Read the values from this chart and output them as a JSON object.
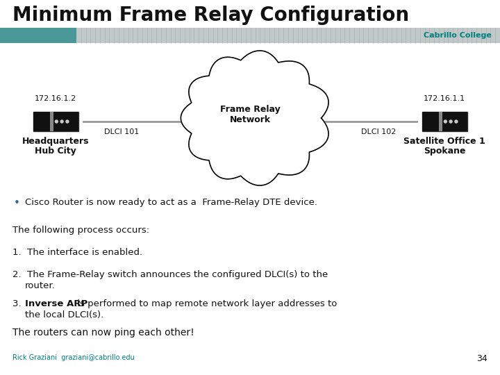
{
  "title": "Minimum Frame Relay Configuration",
  "title_fontsize": 20,
  "bg_color": "#ffffff",
  "header_teal_color": "#4a9898",
  "header_grey_color": "#c0c8c8",
  "cabrillo_text": "Cabrillo College",
  "cabrillo_color": "#008080",
  "cloud_label": "Frame Relay\nNetwork",
  "left_ip": "172.16.1.2",
  "right_ip": "172.16.1.1",
  "left_label1": "Headquarters",
  "left_label2": "Hub City",
  "right_label1": "Satellite Office 1",
  "right_label2": "Spokane",
  "left_dlci": "DLCI 101",
  "right_dlci": "DLCI 102",
  "bullet_text": "Cisco Router is now ready to act as a  Frame-Relay DTE device.",
  "footer_text": "The routers can now ping each other!",
  "footnote": "Rick Graziani  graziani@cabrillo.edu",
  "page_num": "34",
  "text_color": "#111111"
}
